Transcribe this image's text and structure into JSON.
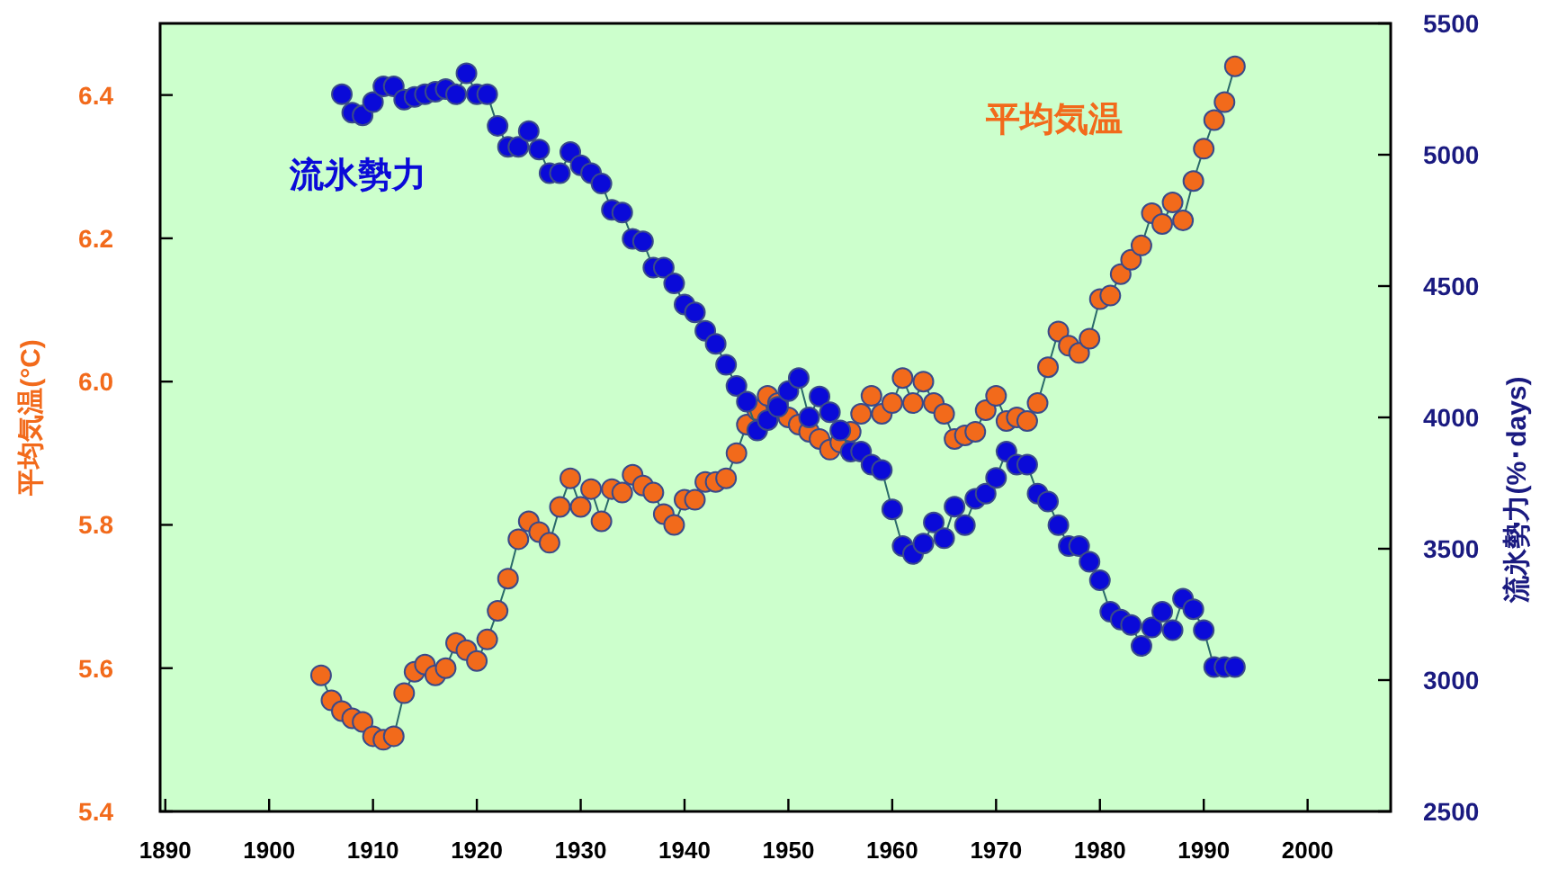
{
  "chart_data": {
    "type": "line",
    "xlabel": null,
    "ylabel": "平均気温(°C)",
    "y2label": "流氷勢力(%･days)",
    "xlim": [
      1889.5,
      2008
    ],
    "xticks": [
      1890,
      1900,
      1910,
      1920,
      1930,
      1940,
      1950,
      1960,
      1970,
      1980,
      1990,
      2000
    ],
    "ylim": [
      5.4,
      6.5
    ],
    "yticks": [
      5.4,
      5.6,
      5.8,
      {
        "value": 6.0,
        "label": "6.0"
      },
      6.2,
      6.4
    ],
    "y2lim": [
      2500,
      5500
    ],
    "y2ticks": [
      2500,
      3000,
      3500,
      4000,
      4500,
      5000,
      5500
    ],
    "marker": "circle",
    "line_style": "solid",
    "grid": false,
    "series": [
      {
        "name": "平均気温",
        "color": "#f26a1b",
        "x": [
          1905,
          1906,
          1907,
          1908,
          1909,
          1910,
          1911,
          1912,
          1913,
          1914,
          1915,
          1916,
          1917,
          1918,
          1919,
          1920,
          1921,
          1922,
          1923,
          1924,
          1925,
          1926,
          1927,
          1928,
          1929,
          1930,
          1931,
          1932,
          1933,
          1934,
          1935,
          1936,
          1937,
          1938,
          1939,
          1940,
          1941,
          1942,
          1943,
          1944,
          1945,
          1946,
          1947,
          1948,
          1949,
          1950,
          1951,
          1952,
          1953,
          1954,
          1955,
          1956,
          1957,
          1958,
          1959,
          1960,
          1961,
          1962,
          1963,
          1964,
          1965,
          1966,
          1967,
          1968,
          1969,
          1970,
          1971,
          1972,
          1973,
          1974,
          1975,
          1976,
          1977,
          1978,
          1979,
          1980,
          1981,
          1982,
          1983,
          1984,
          1985,
          1986,
          1987,
          1988,
          1989,
          1990,
          1991,
          1992,
          1993
        ],
        "values": [
          5.59,
          5.555,
          5.54,
          5.53,
          5.525,
          5.505,
          5.5,
          5.505,
          5.565,
          5.595,
          5.605,
          5.59,
          5.6,
          5.635,
          5.625,
          5.61,
          5.64,
          5.68,
          5.725,
          5.78,
          5.805,
          5.79,
          5.775,
          5.825,
          5.865,
          5.825,
          5.85,
          5.805,
          5.85,
          5.845,
          5.87,
          5.855,
          5.845,
          5.815,
          5.8,
          5.835,
          5.835,
          5.86,
          5.86,
          5.865,
          5.9,
          5.94,
          5.96,
          5.98,
          5.97,
          5.95,
          5.94,
          5.93,
          5.92,
          5.905,
          5.915,
          5.93,
          5.955,
          5.98,
          5.955,
          5.97,
          6.005,
          5.97,
          6.0,
          5.97,
          5.955,
          5.92,
          5.925,
          5.93,
          5.96,
          5.98,
          5.945,
          5.95,
          5.945,
          5.97,
          6.02,
          6.07,
          6.05,
          6.04,
          6.06,
          6.115,
          6.12,
          6.15,
          6.17,
          6.19,
          6.235,
          6.22,
          6.25,
          6.225,
          6.28,
          6.325,
          6.365,
          6.39,
          6.44
        ]
      },
      {
        "name": "流氷勢力",
        "color": "#0a0ad8",
        "axis": "y2",
        "x": [
          1907,
          1908,
          1909,
          1910,
          1911,
          1912,
          1913,
          1914,
          1915,
          1916,
          1917,
          1918,
          1919,
          1920,
          1921,
          1922,
          1923,
          1924,
          1925,
          1926,
          1927,
          1928,
          1929,
          1930,
          1931,
          1932,
          1933,
          1934,
          1935,
          1936,
          1937,
          1938,
          1939,
          1940,
          1941,
          1942,
          1943,
          1944,
          1945,
          1946,
          1947,
          1948,
          1949,
          1950,
          1951,
          1952,
          1953,
          1954,
          1955,
          1956,
          1957,
          1958,
          1959,
          1960,
          1961,
          1962,
          1963,
          1964,
          1965,
          1966,
          1967,
          1968,
          1969,
          1970,
          1971,
          1972,
          1973,
          1974,
          1975,
          1976,
          1977,
          1978,
          1979,
          1980,
          1981,
          1982,
          1983,
          1984,
          1985,
          1986,
          1987,
          1988,
          1989,
          1990,
          1991,
          1992,
          1993
        ],
        "values": [
          5230,
          5160,
          5150,
          5200,
          5260,
          5260,
          5210,
          5220,
          5230,
          5240,
          5250,
          5230,
          5310,
          5230,
          5230,
          5110,
          5030,
          5030,
          5090,
          5020,
          4930,
          4930,
          5010,
          4960,
          4930,
          4890,
          4790,
          4780,
          4680,
          4670,
          4570,
          4570,
          4510,
          4430,
          4400,
          4330,
          4280,
          4200,
          4120,
          4060,
          3950,
          3990,
          4040,
          4100,
          4150,
          4000,
          4080,
          4020,
          3950,
          3870,
          3870,
          3820,
          3800,
          3650,
          3510,
          3480,
          3520,
          3600,
          3540,
          3660,
          3590,
          3690,
          3710,
          3770,
          3870,
          3820,
          3820,
          3710,
          3680,
          3590,
          3510,
          3510,
          3450,
          3380,
          3260,
          3230,
          3210,
          3130,
          3200,
          3260,
          3190,
          3310,
          3270,
          3190,
          3050,
          3050,
          3050
        ]
      }
    ]
  }
}
